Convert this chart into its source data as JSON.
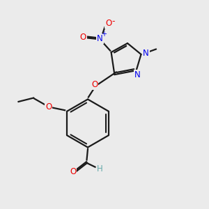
{
  "bg_color": "#ebebeb",
  "bond_color": "#1a1a1a",
  "N_color": "#0000ee",
  "O_color": "#ee0000",
  "H_color": "#66aaaa",
  "line_width": 1.6,
  "figsize": [
    3.0,
    3.0
  ],
  "dpi": 100,
  "xlim": [
    0,
    10
  ],
  "ylim": [
    0,
    10
  ]
}
